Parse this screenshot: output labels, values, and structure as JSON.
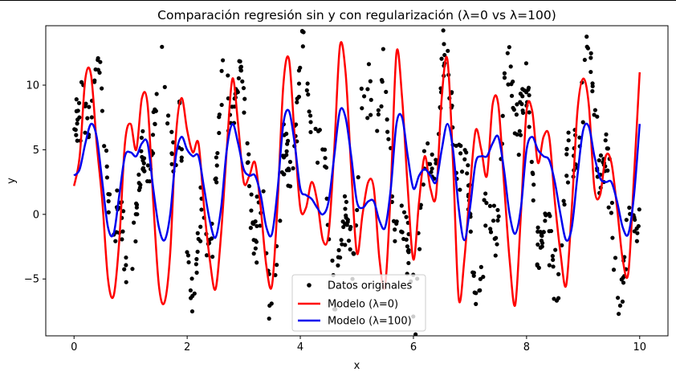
{
  "chart_data": {
    "type": "line",
    "title": "Comparación regresión sin y con regularización (λ=0 vs λ=100)",
    "xlabel": "x",
    "ylabel": "y",
    "xlim": [
      -0.5,
      10.5
    ],
    "ylim": [
      -9.4,
      14.6
    ],
    "xticks": [
      0,
      2,
      4,
      6,
      8,
      10
    ],
    "yticks": [
      -5,
      0,
      5,
      10
    ],
    "grid": false,
    "legend_position": "lower-center",
    "scatter_series": {
      "name": "Datos originales",
      "color": "#000000",
      "count": 600,
      "x_range": [
        0,
        10
      ],
      "generator": "y = 3 + 7*sin(2*pi*x/1.25) + 3*sin(2*pi*x/0.36) + noise(sd~1)"
    },
    "series": [
      {
        "name": "Modelo (λ=0)",
        "color": "#ff0000",
        "x": [
          0.0,
          0.1,
          0.2,
          0.3,
          0.4,
          0.5,
          0.6,
          0.7,
          0.8,
          0.9,
          1.0,
          1.1,
          1.2,
          1.3,
          1.4,
          1.5,
          1.6,
          1.7,
          1.8,
          1.9,
          2.0,
          2.1,
          2.2,
          2.3,
          2.4,
          2.5,
          2.6,
          2.7,
          2.8,
          2.9,
          3.0,
          3.1,
          3.2,
          3.3,
          3.4,
          3.5,
          3.6,
          3.7,
          3.8,
          3.9,
          4.0,
          4.1,
          4.2,
          4.3,
          4.4,
          4.5,
          4.6,
          4.7,
          4.8,
          4.9,
          5.0,
          5.1,
          5.2,
          5.3,
          5.4,
          5.5,
          5.6,
          5.7,
          5.8,
          5.9,
          6.0,
          6.1,
          6.2,
          6.3,
          6.4,
          6.5,
          6.6,
          6.7,
          6.8,
          6.9,
          7.0,
          7.1,
          7.2,
          7.3,
          7.4,
          7.5,
          7.6,
          7.7,
          7.8,
          7.9,
          8.0,
          8.1,
          8.2,
          8.3,
          8.4,
          8.5,
          8.6,
          8.7,
          8.8,
          8.9,
          9.0,
          9.1,
          9.2,
          9.3,
          9.4,
          9.5,
          9.6,
          9.7,
          9.8,
          9.9,
          10.0
        ],
        "y": [
          2.2,
          4.5,
          10.5,
          10.8,
          5.5,
          1.0,
          -5.0,
          -6.3,
          -2.0,
          5.5,
          7.0,
          5.0,
          9.0,
          8.5,
          1.0,
          -5.5,
          -6.8,
          -3.0,
          6.0,
          9.0,
          6.5,
          4.8,
          5.5,
          0.5,
          -3.5,
          -5.8,
          -1.5,
          5.0,
          10.5,
          7.0,
          2.5,
          3.0,
          4.0,
          0.5,
          -4.0,
          -5.5,
          1.0,
          10.0,
          12.0,
          6.0,
          0.5,
          0.5,
          2.5,
          1.0,
          -2.0,
          -1.5,
          5.0,
          13.0,
          11.0,
          3.5,
          -3.0,
          0.0,
          2.5,
          2.0,
          -3.5,
          -5.5,
          2.0,
          12.5,
          9.0,
          2.0,
          -3.5,
          1.0,
          4.5,
          2.0,
          1.5,
          9.0,
          12.0,
          4.0,
          -6.5,
          -3.5,
          2.0,
          6.5,
          5.0,
          3.0,
          8.5,
          8.5,
          2.5,
          -3.5,
          -7.0,
          0.0,
          8.0,
          8.0,
          4.0,
          6.0,
          6.0,
          1.0,
          -3.0,
          -5.5,
          0.5,
          8.0,
          10.5,
          8.5,
          2.0,
          1.5,
          4.5,
          4.0,
          0.5,
          -3.5,
          -4.5,
          3.0,
          11.0
        ]
      },
      {
        "name": "Modelo (λ=100)",
        "color": "#0000ee",
        "x": [
          0.0,
          0.1,
          0.2,
          0.3,
          0.4,
          0.5,
          0.6,
          0.7,
          0.8,
          0.9,
          1.0,
          1.1,
          1.2,
          1.3,
          1.4,
          1.5,
          1.6,
          1.7,
          1.8,
          1.9,
          2.0,
          2.1,
          2.2,
          2.3,
          2.4,
          2.5,
          2.6,
          2.7,
          2.8,
          2.9,
          3.0,
          3.1,
          3.2,
          3.3,
          3.4,
          3.5,
          3.6,
          3.7,
          3.8,
          3.9,
          4.0,
          4.1,
          4.2,
          4.3,
          4.4,
          4.5,
          4.6,
          4.7,
          4.8,
          4.9,
          5.0,
          5.1,
          5.2,
          5.3,
          5.4,
          5.5,
          5.6,
          5.7,
          5.8,
          5.9,
          6.0,
          6.1,
          6.2,
          6.3,
          6.4,
          6.5,
          6.6,
          6.7,
          6.8,
          6.9,
          7.0,
          7.1,
          7.2,
          7.3,
          7.4,
          7.5,
          7.6,
          7.7,
          7.8,
          7.9,
          8.0,
          8.1,
          8.2,
          8.3,
          8.4,
          8.5,
          8.6,
          8.7,
          8.8,
          8.9,
          9.0,
          9.1,
          9.2,
          9.3,
          9.4,
          9.5,
          9.6,
          9.7,
          9.8,
          9.9,
          10.0
        ],
        "y": [
          3.0,
          3.5,
          5.5,
          7.0,
          6.0,
          2.5,
          -1.0,
          -1.5,
          1.5,
          4.5,
          4.8,
          4.5,
          5.5,
          5.5,
          2.0,
          -1.0,
          -2.0,
          0.0,
          4.5,
          6.0,
          5.0,
          4.5,
          4.5,
          2.0,
          -0.5,
          -1.8,
          0.5,
          5.0,
          7.0,
          5.5,
          3.5,
          3.0,
          3.0,
          1.5,
          -1.0,
          -1.5,
          2.0,
          7.0,
          8.0,
          5.5,
          2.0,
          1.5,
          1.2,
          0.5,
          0.0,
          1.0,
          4.5,
          8.0,
          7.5,
          4.5,
          1.0,
          0.5,
          1.0,
          1.0,
          -0.5,
          -1.0,
          2.0,
          7.0,
          7.5,
          4.5,
          2.0,
          3.0,
          3.5,
          3.0,
          2.5,
          5.0,
          7.0,
          5.0,
          0.5,
          -2.0,
          0.5,
          4.0,
          4.5,
          4.5,
          5.5,
          6.0,
          3.5,
          0.0,
          -1.5,
          0.5,
          5.0,
          6.0,
          5.0,
          4.5,
          4.2,
          2.5,
          0.0,
          -2.0,
          -1.0,
          3.0,
          6.5,
          6.8,
          4.5,
          2.8,
          2.5,
          2.5,
          1.0,
          -1.0,
          -1.5,
          1.5,
          7.0
        ]
      }
    ]
  }
}
